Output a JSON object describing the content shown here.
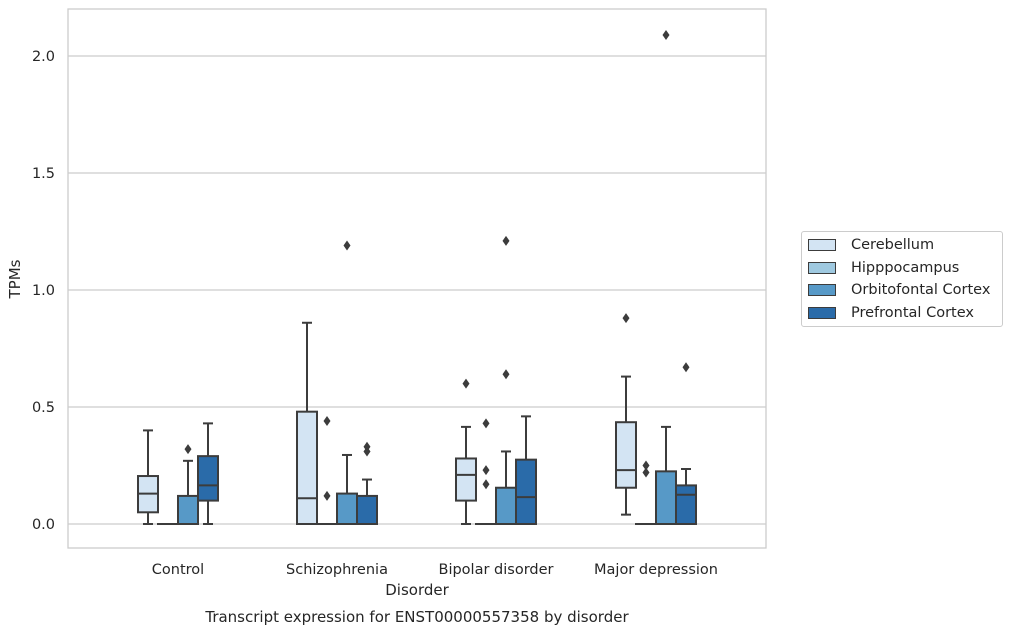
{
  "chart_data": {
    "type": "box",
    "xlabel": "Disorder",
    "ylabel": "TPMs",
    "caption": "Transcript expression for ENST00000557358 by disorder",
    "ylim": [
      -0.1,
      2.2
    ],
    "yticks": [
      "0.0",
      "0.5",
      "1.0",
      "1.5",
      "2.0"
    ],
    "grid": true,
    "legend_position": "right",
    "categories": [
      "Control",
      "Schizophrenia",
      "Bipolar disorder",
      "Major depression"
    ],
    "series": [
      {
        "name": "Cerebellum",
        "color": "#d3e4f3",
        "boxes": [
          {
            "whislo": 0.0,
            "q1": 0.05,
            "med": 0.13,
            "q3": 0.205,
            "whishi": 0.4,
            "fliers": []
          },
          {
            "whislo": 0.0,
            "q1": 0.0,
            "med": 0.11,
            "q3": 0.48,
            "whishi": 0.86,
            "fliers": []
          },
          {
            "whislo": 0.0,
            "q1": 0.1,
            "med": 0.21,
            "q3": 0.28,
            "whishi": 0.415,
            "fliers": [
              0.6
            ]
          },
          {
            "whislo": 0.04,
            "q1": 0.155,
            "med": 0.23,
            "q3": 0.435,
            "whishi": 0.63,
            "fliers": [
              0.88
            ]
          }
        ]
      },
      {
        "name": "Hipppocampus",
        "color": "#9fc9e0",
        "boxes": [
          {
            "whislo": 0.0,
            "q1": 0.0,
            "med": 0.0,
            "q3": 0.0,
            "whishi": 0.0,
            "fliers": []
          },
          {
            "whislo": 0.0,
            "q1": 0.0,
            "med": 0.0,
            "q3": 0.0,
            "whishi": 0.0,
            "fliers": [
              0.12,
              0.44
            ]
          },
          {
            "whislo": 0.0,
            "q1": 0.0,
            "med": 0.0,
            "q3": 0.0,
            "whishi": 0.0,
            "fliers": [
              0.17,
              0.23,
              0.43
            ]
          },
          {
            "whislo": 0.0,
            "q1": 0.0,
            "med": 0.0,
            "q3": 0.0,
            "whishi": 0.0,
            "fliers": [
              0.22,
              0.25
            ]
          }
        ]
      },
      {
        "name": "Orbitofontal Cortex",
        "color": "#5799c7",
        "boxes": [
          {
            "whislo": 0.0,
            "q1": 0.0,
            "med": 0.0,
            "q3": 0.12,
            "whishi": 0.27,
            "fliers": [
              0.32
            ]
          },
          {
            "whislo": 0.0,
            "q1": 0.0,
            "med": 0.0,
            "q3": 0.13,
            "whishi": 0.295,
            "fliers": [
              1.19
            ]
          },
          {
            "whislo": 0.0,
            "q1": 0.0,
            "med": 0.0,
            "q3": 0.155,
            "whishi": 0.31,
            "fliers": [
              0.64,
              1.21
            ]
          },
          {
            "whislo": 0.0,
            "q1": 0.0,
            "med": 0.0,
            "q3": 0.225,
            "whishi": 0.415,
            "fliers": [
              2.09
            ]
          }
        ]
      },
      {
        "name": "Prefrontal Cortex",
        "color": "#2a6ba9",
        "boxes": [
          {
            "whislo": 0.0,
            "q1": 0.1,
            "med": 0.165,
            "q3": 0.29,
            "whishi": 0.43,
            "fliers": []
          },
          {
            "whislo": 0.0,
            "q1": 0.0,
            "med": 0.0,
            "q3": 0.12,
            "whishi": 0.19,
            "fliers": [
              0.31,
              0.33
            ]
          },
          {
            "whislo": 0.0,
            "q1": 0.0,
            "med": 0.115,
            "q3": 0.275,
            "whishi": 0.46,
            "fliers": []
          },
          {
            "whislo": 0.0,
            "q1": 0.0,
            "med": 0.125,
            "q3": 0.165,
            "whishi": 0.235,
            "fliers": [
              0.67
            ]
          }
        ]
      }
    ]
  }
}
